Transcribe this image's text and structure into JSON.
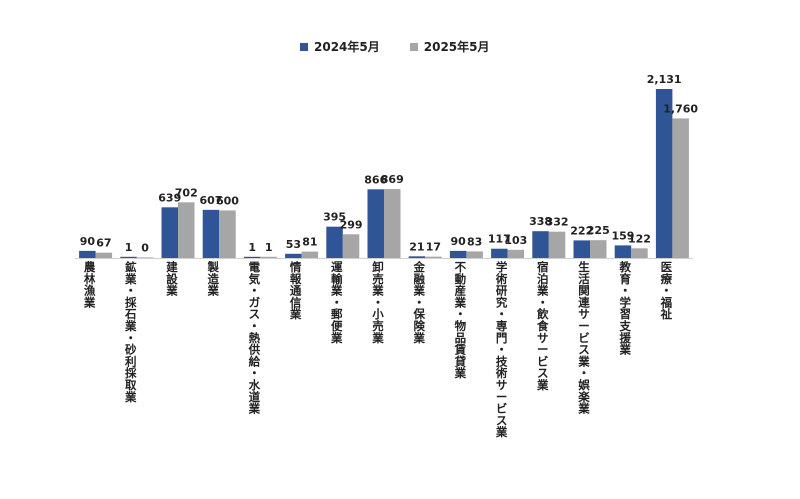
{
  "chart_data": {
    "type": "bar",
    "series": [
      {
        "name": "2024年5月",
        "color": "#2f5597",
        "values": [
          90,
          1,
          639,
          607,
          1,
          53,
          395,
          866,
          21,
          90,
          117,
          338,
          222,
          159,
          2131
        ],
        "labels": [
          "90",
          "1",
          "639",
          "607",
          "1",
          "53",
          "395",
          "866",
          "21",
          "90",
          "117",
          "338",
          "222",
          "159",
          "2,131"
        ]
      },
      {
        "name": "2025年5月",
        "color": "#a6a6a6",
        "values": [
          67,
          0,
          702,
          600,
          1,
          81,
          299,
          869,
          17,
          83,
          103,
          332,
          225,
          122,
          1760
        ],
        "labels": [
          "67",
          "0",
          "702",
          "600",
          "1",
          "81",
          "299",
          "869",
          "17",
          "83",
          "103",
          "332",
          "225",
          "122",
          "1,760"
        ]
      }
    ],
    "categories": [
      "農林漁業",
      "鉱業・採石業・砂利採取業",
      "建設業",
      "製造業",
      "電気・ガス・熱供給・水道業",
      "情報通信業",
      "運輸業・郵便業",
      "卸売業・小売業",
      "金融業・保険業",
      "不動産業・物品賃貸業",
      "学術研究・専門・技術サービス業",
      "宿泊業・飲食サービス業",
      "生活関連サービス業・娯楽業",
      "教育・学習支援業",
      "医療・福祉"
    ],
    "ylim": [
      0,
      2131
    ],
    "grid": false,
    "legend": "top-center"
  }
}
